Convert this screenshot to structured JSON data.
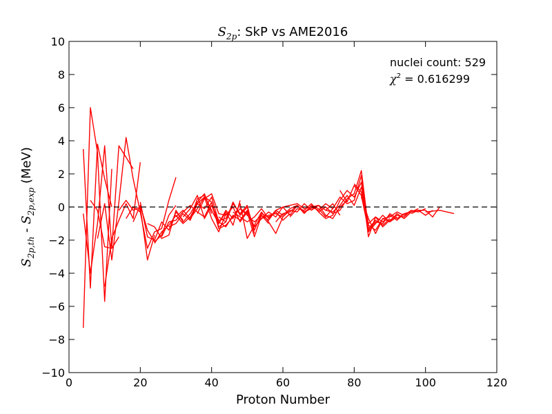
{
  "chart_data": {
    "type": "line",
    "title": {
      "symbol": "S",
      "symbol_sub": "2p",
      "text": ":  SkP vs AME2016"
    },
    "xlabel": "Proton Number",
    "ylabel": {
      "a_symbol": "S",
      "a_sub": "2p,th",
      "sep": " - ",
      "b_symbol": "S",
      "b_sub": "2p,exp",
      "unit": " (MeV)"
    },
    "xlim": [
      0,
      120
    ],
    "ylim": [
      -10,
      10
    ],
    "xticks": [
      0,
      20,
      40,
      60,
      80,
      100,
      120
    ],
    "yticks": [
      -10,
      -8,
      -6,
      -4,
      -2,
      0,
      2,
      4,
      6,
      8,
      10
    ],
    "grid": false,
    "reference_line": {
      "y": 0,
      "style": "dashed",
      "color": "#000000"
    },
    "annotations": {
      "count_text": "nuclei count: 529",
      "chi_symbol": "χ",
      "chi_sup": "2",
      "chi_text": " = 0.616299"
    },
    "line_color": "#ff0000",
    "series": [
      {
        "x": [
          4,
          6,
          8,
          10,
          12
        ],
        "y": [
          3.5,
          -4.9,
          3.8,
          1.7,
          0.0
        ]
      },
      {
        "x": [
          4,
          6,
          8,
          10,
          12
        ],
        "y": [
          -7.3,
          6.0,
          3.3,
          -5.7,
          2.3
        ]
      },
      {
        "x": [
          4,
          6,
          8,
          10,
          12,
          14
        ],
        "y": [
          -0.4,
          -4.0,
          -1.0,
          3.7,
          -2.5,
          -1.8
        ]
      },
      {
        "x": [
          6,
          8,
          10,
          12,
          14,
          16,
          18
        ],
        "y": [
          0.4,
          -0.2,
          -2.4,
          -2.5,
          3.7,
          3.0,
          2.3
        ]
      },
      {
        "x": [
          8,
          10,
          12,
          14,
          16,
          18,
          20
        ],
        "y": [
          -1.9,
          0.2,
          -3.2,
          0.3,
          4.2,
          1.7,
          -0.3
        ]
      },
      {
        "x": [
          10,
          12,
          14,
          16,
          18,
          20
        ],
        "y": [
          -4.8,
          -1.9,
          -0.8,
          0.2,
          -0.7,
          2.7
        ]
      },
      {
        "x": [
          14,
          16,
          18,
          20,
          22,
          24
        ],
        "y": [
          -0.2,
          0.4,
          -0.2,
          0.0,
          -3.2,
          -1.7
        ]
      },
      {
        "x": [
          16,
          18,
          20,
          22,
          24,
          26,
          28,
          30
        ],
        "y": [
          -0.7,
          0.0,
          -0.3,
          -2.5,
          -1.5,
          -1.3,
          0.4,
          1.8
        ]
      },
      {
        "x": [
          18,
          20,
          22,
          24,
          26,
          28,
          30
        ],
        "y": [
          -0.9,
          0.1,
          -1.4,
          -2.1,
          -1.7,
          -0.5,
          0.1
        ]
      },
      {
        "x": [
          20,
          22,
          24,
          26,
          28,
          30,
          32
        ],
        "y": [
          0.3,
          -1.8,
          -2.0,
          -0.9,
          -1.4,
          -0.3,
          -0.8
        ]
      },
      {
        "x": [
          22,
          24,
          26,
          28,
          30,
          32,
          34,
          36,
          38,
          40
        ],
        "y": [
          -1.0,
          -1.2,
          -1.9,
          -1.7,
          -0.2,
          -0.9,
          -0.4,
          0.3,
          0.8,
          -0.4
        ]
      },
      {
        "x": [
          24,
          26,
          28,
          30,
          32,
          34,
          36,
          38,
          40,
          42,
          44
        ],
        "y": [
          -2.2,
          -1.5,
          -1.1,
          -0.5,
          -1.0,
          -0.6,
          0.2,
          0.6,
          -0.7,
          -1.5,
          -0.4
        ]
      },
      {
        "x": [
          26,
          28,
          30,
          32,
          34,
          36,
          38,
          40,
          42,
          44,
          46
        ],
        "y": [
          -1.8,
          -0.9,
          -0.8,
          -0.3,
          0.1,
          -0.3,
          -0.6,
          0.3,
          -1.2,
          -0.9,
          0.2
        ]
      },
      {
        "x": [
          28,
          30,
          32,
          34,
          36,
          38,
          40,
          42,
          44,
          46,
          48
        ],
        "y": [
          -1.2,
          -1.0,
          -0.4,
          -0.8,
          0.5,
          0.7,
          -0.2,
          -1.0,
          -0.3,
          -1.1,
          0.4
        ]
      },
      {
        "x": [
          30,
          32,
          34,
          36,
          38,
          40,
          42,
          44,
          46,
          48,
          50
        ],
        "y": [
          -0.6,
          -0.2,
          -0.7,
          -0.1,
          0.6,
          0.3,
          -1.3,
          -1.1,
          -0.6,
          -0.1,
          -0.5
        ]
      },
      {
        "x": [
          32,
          34,
          36,
          38,
          40,
          42,
          44,
          46,
          48,
          50,
          52
        ],
        "y": [
          -0.6,
          -0.1,
          0.7,
          -0.7,
          0.1,
          -0.8,
          -0.7,
          0.2,
          -0.4,
          0.1,
          -1.6
        ]
      },
      {
        "x": [
          34,
          36,
          38,
          40,
          42,
          44,
          46,
          48,
          50,
          52,
          54
        ],
        "y": [
          -0.8,
          0.2,
          -0.1,
          0.6,
          -0.9,
          -1.2,
          -0.5,
          -0.8,
          -0.2,
          -1.2,
          -0.7
        ]
      },
      {
        "x": [
          36,
          38,
          40,
          42,
          44,
          46,
          48,
          50,
          52,
          54,
          56
        ],
        "y": [
          -0.4,
          0.5,
          0.8,
          -0.4,
          -0.5,
          0.0,
          -0.9,
          -0.3,
          -1.8,
          -0.5,
          -1.0
        ]
      },
      {
        "x": [
          40,
          42,
          44,
          46,
          48,
          50,
          52,
          54,
          56,
          58,
          60
        ],
        "y": [
          0.1,
          -1.0,
          -0.2,
          -0.7,
          0.2,
          -1.9,
          -1.1,
          -0.3,
          -0.9,
          -1.6,
          -0.6
        ]
      },
      {
        "x": [
          42,
          44,
          46,
          48,
          50,
          52,
          54,
          56,
          58,
          60,
          62
        ],
        "y": [
          -0.6,
          -0.9,
          0.3,
          -0.5,
          0.0,
          -1.4,
          -0.4,
          -0.6,
          -0.3,
          -0.8,
          -0.4
        ]
      },
      {
        "x": [
          46,
          48,
          50,
          52,
          54,
          56,
          58,
          60,
          62,
          64,
          66
        ],
        "y": [
          -0.3,
          -0.6,
          -0.9,
          -0.6,
          -0.1,
          -0.7,
          -0.2,
          0.0,
          -0.5,
          0.1,
          -0.4
        ]
      },
      {
        "x": [
          48,
          50,
          52,
          54,
          56,
          58,
          60,
          62,
          64,
          66,
          68,
          70
        ],
        "y": [
          -0.1,
          -0.4,
          -1.2,
          -0.7,
          -0.5,
          -0.4,
          -0.6,
          -0.2,
          -0.3,
          0.2,
          -0.2,
          0.1
        ]
      },
      {
        "x": [
          50,
          52,
          54,
          56,
          58,
          60,
          62,
          64,
          66,
          68,
          70,
          72,
          74
        ],
        "y": [
          -0.5,
          -0.9,
          -0.5,
          -0.8,
          -0.2,
          -0.5,
          -0.1,
          0.1,
          -0.3,
          0.0,
          -0.2,
          0.2,
          -0.1
        ]
      },
      {
        "x": [
          54,
          56,
          58,
          60,
          62,
          64,
          66,
          68,
          70,
          72,
          74,
          76
        ],
        "y": [
          -0.7,
          -0.3,
          -0.6,
          0.0,
          0.1,
          0.2,
          -0.1,
          0.0,
          0.1,
          -0.2,
          0.2,
          -0.5
        ]
      },
      {
        "x": [
          58,
          60,
          62,
          64,
          66,
          68,
          70,
          72,
          74,
          76,
          78
        ],
        "y": [
          -0.9,
          -0.4,
          -0.3,
          0.1,
          -0.3,
          -0.1,
          0.1,
          -0.5,
          -0.7,
          0.0,
          0.4
        ]
      },
      {
        "x": [
          62,
          64,
          66,
          68,
          70,
          72,
          74,
          76,
          78,
          80,
          82,
          84,
          86,
          88,
          90
        ],
        "y": [
          -0.6,
          -0.1,
          -0.2,
          0.2,
          -0.3,
          0.0,
          -0.4,
          -0.2,
          0.5,
          0.8,
          2.2,
          -1.3,
          -0.8,
          -1.1,
          -0.7
        ]
      },
      {
        "x": [
          66,
          68,
          70,
          72,
          74,
          76,
          78,
          80,
          82,
          84,
          86,
          88,
          90,
          92
        ],
        "y": [
          -0.4,
          0.1,
          -0.1,
          -0.6,
          -0.1,
          0.6,
          0.2,
          0.4,
          1.9,
          -1.5,
          -1.0,
          -0.5,
          -0.9,
          -0.6
        ]
      },
      {
        "x": [
          70,
          72,
          74,
          76,
          78,
          80,
          82,
          84,
          86,
          88,
          90,
          92,
          94
        ],
        "y": [
          -0.3,
          -0.7,
          -0.5,
          0.4,
          1.0,
          0.6,
          1.5,
          -1.8,
          -0.6,
          -0.9,
          -0.5,
          -0.8,
          -0.4
        ]
      },
      {
        "x": [
          72,
          74,
          76,
          78,
          80,
          82,
          84,
          86,
          88,
          90,
          92,
          94,
          96
        ],
        "y": [
          -0.2,
          -0.3,
          0.1,
          0.7,
          0.1,
          1.2,
          -1.1,
          -1.4,
          -0.7,
          -0.6,
          -0.3,
          -0.5,
          -0.2
        ]
      },
      {
        "x": [
          76,
          78,
          80,
          82,
          84,
          86,
          88,
          90,
          92,
          94,
          96,
          98
        ],
        "y": [
          1.0,
          0.3,
          1.3,
          0.7,
          -1.4,
          -0.9,
          -1.0,
          -0.4,
          -0.7,
          -0.4,
          -0.3,
          -0.1
        ]
      },
      {
        "x": [
          80,
          82,
          84,
          86,
          88,
          90,
          92,
          94,
          96,
          98,
          100
        ],
        "y": [
          1.4,
          0.9,
          -1.0,
          -0.6,
          -1.2,
          -0.8,
          -0.5,
          -0.6,
          -0.2,
          -0.3,
          -0.1
        ]
      },
      {
        "x": [
          82,
          84,
          86,
          88,
          90,
          92,
          94,
          96,
          98,
          100,
          102
        ],
        "y": [
          0.6,
          -0.7,
          -1.6,
          -0.7,
          -0.9,
          -0.4,
          -0.7,
          -0.3,
          -0.2,
          -0.5,
          -0.2
        ]
      },
      {
        "x": [
          96,
          98,
          100,
          102,
          104
        ],
        "y": [
          -0.4,
          -0.2,
          -0.2,
          -0.6,
          0.0
        ]
      },
      {
        "x": [
          100,
          104,
          108
        ],
        "y": [
          -0.3,
          -0.2,
          -0.4
        ]
      }
    ]
  }
}
